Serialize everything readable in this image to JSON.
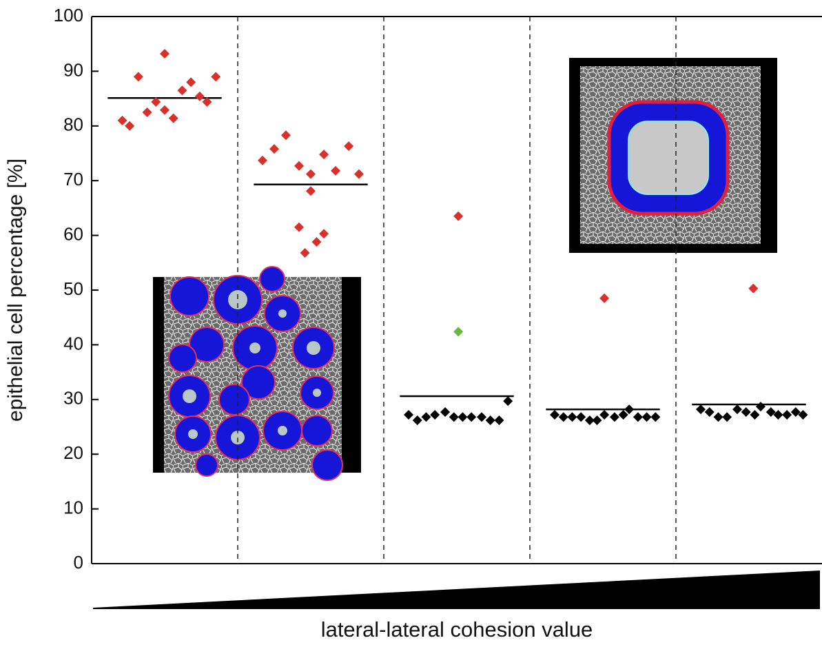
{
  "chart_data": {
    "type": "scatter",
    "ylabel": "epithelial cell percentage [%]",
    "xlabel": "lateral-lateral cohesion value",
    "xlim": [
      0,
      5
    ],
    "xticks": [
      1,
      2,
      3,
      4
    ],
    "ylim": [
      0,
      100
    ],
    "yticks": [
      0,
      10,
      20,
      30,
      40,
      50,
      60,
      70,
      80,
      90,
      100
    ],
    "series": [
      {
        "color": "#d9302c",
        "x": [
          0.21,
          0.26,
          0.32,
          0.38,
          0.44,
          0.5,
          0.5,
          0.56,
          0.62,
          0.68,
          0.74,
          0.79,
          0.85,
          1.17,
          1.25,
          1.33,
          1.42,
          1.42,
          1.5,
          1.5,
          1.54,
          1.46,
          1.59,
          1.59,
          1.67,
          1.76,
          1.83,
          2.51,
          3.51,
          4.53
        ],
        "values": [
          81,
          80,
          89,
          82.5,
          84.4,
          93.2,
          82.9,
          81.4,
          86.5,
          88,
          85.4,
          84.4,
          89,
          73.7,
          75.8,
          78.3,
          72.7,
          61.5,
          71.2,
          68.1,
          58.8,
          56.8,
          60.3,
          74.8,
          71.8,
          76.3,
          71.2,
          63.5,
          48.5,
          50.3
        ]
      },
      {
        "color": "#6ab83c",
        "x": [
          2.51
        ],
        "values": [
          42.4
        ]
      },
      {
        "color": "#000000",
        "x": [
          2.17,
          2.23,
          2.29,
          2.35,
          2.42,
          2.48,
          2.54,
          2.6,
          2.67,
          2.73,
          2.79,
          2.85,
          3.17,
          3.23,
          3.29,
          3.35,
          3.41,
          3.46,
          3.51,
          3.58,
          3.64,
          3.68,
          3.74,
          3.8,
          3.86,
          4.17,
          4.23,
          4.29,
          4.35,
          4.42,
          4.48,
          4.54,
          4.58,
          4.65,
          4.7,
          4.76,
          4.82,
          4.87
        ],
        "values": [
          27.2,
          26.2,
          26.8,
          27.2,
          27.7,
          26.8,
          26.8,
          26.8,
          26.8,
          26.2,
          26.2,
          29.7,
          27.2,
          26.8,
          26.8,
          26.8,
          26.2,
          26.2,
          27.2,
          26.8,
          27.2,
          28.2,
          26.8,
          26.8,
          26.8,
          28.2,
          27.7,
          26.8,
          26.8,
          28.2,
          27.7,
          27.2,
          28.7,
          27.7,
          27.2,
          27.2,
          27.7,
          27.2
        ]
      }
    ],
    "means": [
      85.1,
      69.3,
      30.6,
      28.2,
      29.1
    ]
  }
}
